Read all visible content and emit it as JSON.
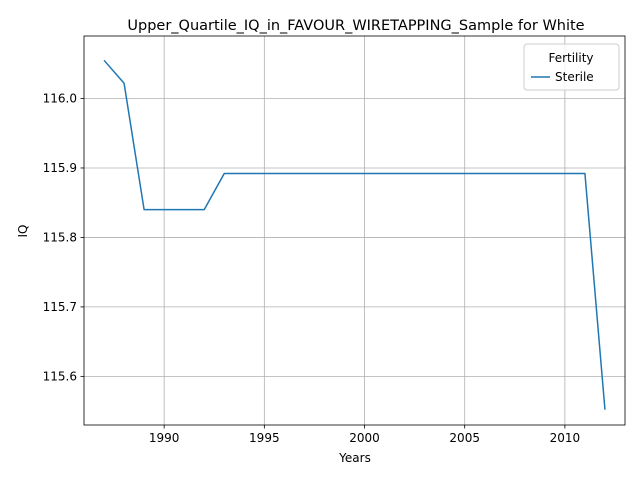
{
  "chart_data": {
    "type": "line",
    "title": "Upper_Quartile_IQ_in_FAVOUR_WIRETAPPING_Sample for White",
    "xlabel": "Years",
    "ylabel": "IQ",
    "xlim": [
      1986,
      2013
    ],
    "ylim": [
      115.53,
      116.09
    ],
    "x_ticks": [
      1990,
      1995,
      2000,
      2005,
      2010
    ],
    "y_ticks": [
      115.6,
      115.7,
      115.8,
      115.9,
      116.0
    ],
    "x_tick_labels": [
      "1990",
      "1995",
      "2000",
      "2005",
      "2010"
    ],
    "y_tick_labels": [
      "115.6",
      "115.7",
      "115.8",
      "115.9",
      "116.0"
    ],
    "grid": true,
    "legend": {
      "title": "Fertility",
      "placement": "top-right",
      "entries": [
        "Sterile"
      ]
    },
    "series": [
      {
        "name": "Sterile",
        "color": "#1f77b4",
        "x": [
          1987,
          1988,
          1989,
          1990,
          1991,
          1992,
          1993,
          1994,
          1995,
          1996,
          1997,
          1998,
          1999,
          2000,
          2001,
          2002,
          2003,
          2004,
          2005,
          2006,
          2007,
          2008,
          2009,
          2010,
          2011,
          2012
        ],
        "y": [
          116.055,
          116.022,
          115.84,
          115.84,
          115.84,
          115.84,
          115.892,
          115.892,
          115.892,
          115.892,
          115.892,
          115.892,
          115.892,
          115.892,
          115.892,
          115.892,
          115.892,
          115.892,
          115.892,
          115.892,
          115.892,
          115.892,
          115.892,
          115.892,
          115.892,
          115.552
        ]
      }
    ]
  }
}
